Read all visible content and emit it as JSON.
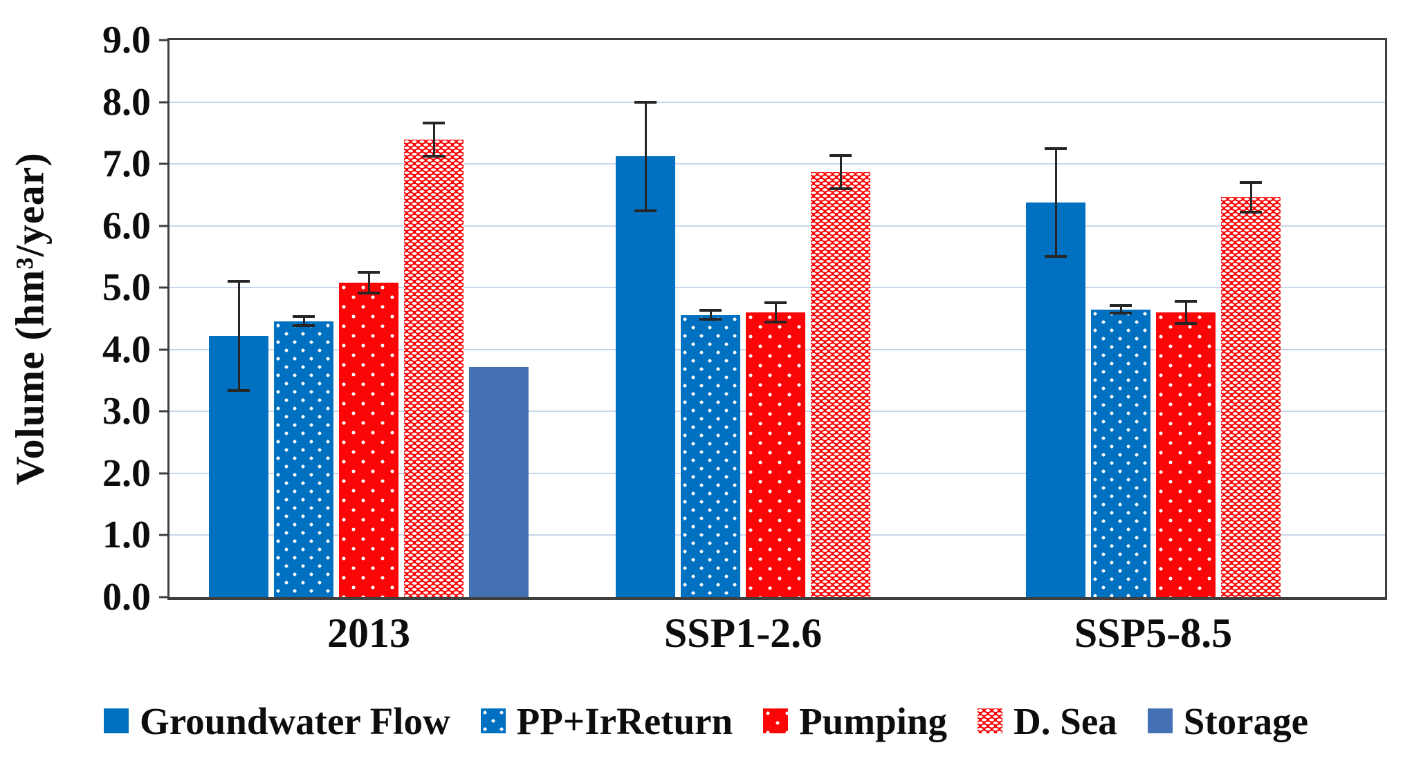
{
  "figure": {
    "y_axis": {
      "title": "Volume (hm³/year)",
      "ticks": [
        "9.0",
        "8.0",
        "7.0",
        "6.0",
        "5.0",
        "4.0",
        "3.0",
        "2.0",
        "1.0",
        "0.0"
      ]
    },
    "x_axis": {
      "group_labels": [
        "2013",
        "SSP1-2.6",
        "SSP5-8.5"
      ]
    },
    "legend_labels": [
      "Groundwater Flow",
      "PP+IrReturn",
      "Pumping",
      "D. Sea",
      "Storage"
    ]
  },
  "chart_data": {
    "type": "bar",
    "title": "",
    "xlabel": "",
    "ylabel": "Volume (hm³/year)",
    "ylim": [
      0,
      9
    ],
    "grid": "horizontal",
    "legend_position": "bottom",
    "error_bars": true,
    "categories": [
      "2013",
      "SSP1-2.6",
      "SSP5-8.5"
    ],
    "series": [
      {
        "name": "Groundwater Flow",
        "style": "solid-blue",
        "color": "#0070C0",
        "values": [
          4.22,
          7.12,
          6.38
        ],
        "errors": [
          0.88,
          0.88,
          0.87
        ]
      },
      {
        "name": "PP+IrReturn",
        "style": "dot-blue",
        "color": "#0070C0",
        "values": [
          4.46,
          4.56,
          4.65
        ],
        "errors": [
          0.07,
          0.07,
          0.06
        ]
      },
      {
        "name": "Pumping",
        "style": "dot-red",
        "color": "#FB0606",
        "values": [
          5.08,
          4.6,
          4.6
        ],
        "errors": [
          0.17,
          0.16,
          0.18
        ]
      },
      {
        "name": "D. Sea",
        "style": "dense-red",
        "color": "#FB0606",
        "values": [
          7.39,
          6.87,
          6.46
        ],
        "errors": [
          0.27,
          0.27,
          0.24
        ]
      },
      {
        "name": "Storage",
        "style": "solid-slate",
        "color": "#4470B4",
        "values": [
          3.72,
          null,
          null
        ],
        "errors": [
          null,
          null,
          null
        ]
      }
    ],
    "colors": {
      "gridline": "#C7D6E9",
      "axis_border": "#3F3F3F",
      "error_bar": "#262626",
      "text": "#0D0D0D"
    }
  }
}
